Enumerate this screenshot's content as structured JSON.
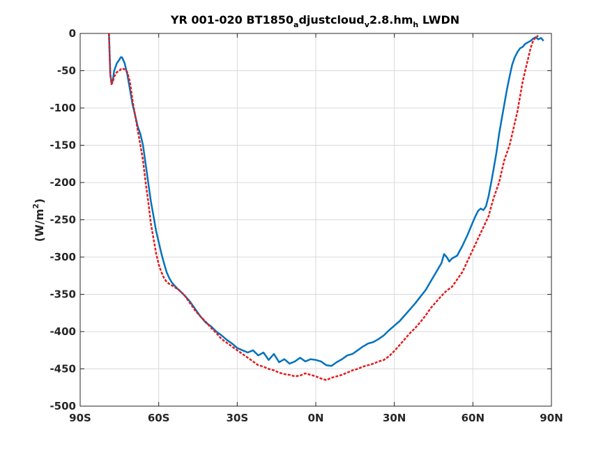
{
  "chart_data": {
    "type": "line",
    "title": {
      "p1": "YR 001-020 BT1850",
      "s1": "a",
      "p2": "djustcloud",
      "s2": "v",
      "p3": "2.8.hm",
      "s3": "h",
      "p4": " LWDN"
    },
    "ylabel": {
      "prefix": "(W/m",
      "sup": "2",
      "suffix": ")"
    },
    "xlabel": "",
    "xlim": [
      -90,
      90
    ],
    "ylim": [
      -500,
      0
    ],
    "x_ticks": [
      -90,
      -60,
      -30,
      0,
      30,
      60,
      90
    ],
    "x_tick_labels": [
      "90S",
      "60S",
      "30S",
      "0N",
      "30N",
      "60N",
      "90N"
    ],
    "y_ticks": [
      0,
      -50,
      -100,
      -150,
      -200,
      -250,
      -300,
      -350,
      -400,
      -450,
      -500
    ],
    "y_tick_labels": [
      "0",
      "-50",
      "-100",
      "-150",
      "-200",
      "-250",
      "-300",
      "-350",
      "-400",
      "-450",
      "-500"
    ],
    "grid": true,
    "series": [
      {
        "color": "#0072bd",
        "style": "solid",
        "x": [
          -79,
          -78.5,
          -78,
          -77.5,
          -77,
          -76,
          -75,
          -74.5,
          -74,
          -73,
          -72,
          -71,
          -70,
          -69,
          -68,
          -67,
          -66,
          -65,
          -64,
          -63,
          -62,
          -61,
          -60,
          -59,
          -58,
          -57,
          -56,
          -55,
          -54,
          -53,
          -52,
          -50,
          -48,
          -46,
          -44,
          -42,
          -40,
          -38,
          -36,
          -34,
          -32,
          -30,
          -28,
          -26,
          -24,
          -22,
          -20,
          -18,
          -16,
          -14,
          -12,
          -10,
          -8,
          -6,
          -4,
          -2,
          0,
          2,
          4,
          6,
          8,
          10,
          12,
          14,
          16,
          18,
          20,
          22,
          24,
          26,
          28,
          30,
          32,
          34,
          36,
          38,
          40,
          42,
          44,
          46,
          48,
          49,
          50,
          51,
          52,
          54,
          56,
          58,
          60,
          61,
          62,
          63,
          64,
          65,
          66,
          67,
          68,
          69,
          70,
          71,
          72,
          73,
          74,
          75,
          76,
          77,
          78,
          79,
          80,
          81,
          82,
          83,
          84,
          85,
          86,
          86.5,
          87
        ],
        "y": [
          0,
          -55,
          -68,
          -62,
          -50,
          -40,
          -35,
          -32,
          -32,
          -40,
          -55,
          -75,
          -95,
          -110,
          -125,
          -135,
          -150,
          -175,
          -200,
          -225,
          -245,
          -265,
          -280,
          -295,
          -308,
          -320,
          -328,
          -334,
          -338,
          -342,
          -345,
          -352,
          -360,
          -370,
          -380,
          -388,
          -393,
          -400,
          -405,
          -411,
          -416,
          -422,
          -425,
          -428,
          -425,
          -432,
          -428,
          -438,
          -430,
          -441,
          -437,
          -443,
          -440,
          -435,
          -440,
          -437,
          -438,
          -440,
          -445,
          -446,
          -441,
          -437,
          -432,
          -430,
          -425,
          -420,
          -416,
          -414,
          -410,
          -405,
          -398,
          -392,
          -386,
          -378,
          -370,
          -362,
          -353,
          -344,
          -332,
          -320,
          -308,
          -296,
          -300,
          -306,
          -302,
          -298,
          -285,
          -270,
          -253,
          -245,
          -238,
          -235,
          -237,
          -232,
          -218,
          -200,
          -180,
          -160,
          -135,
          -115,
          -95,
          -75,
          -58,
          -42,
          -32,
          -25,
          -20,
          -18,
          -14,
          -12,
          -10,
          -7,
          -5,
          -8,
          -6,
          -8,
          -10
        ]
      },
      {
        "color": "#e41a1c",
        "style": "dashed",
        "x": [
          -79,
          -78.5,
          -78,
          -77.5,
          -77,
          -76,
          -75,
          -74.5,
          -74,
          -73,
          -72,
          -71,
          -70,
          -69,
          -68,
          -67,
          -66,
          -65,
          -64,
          -63,
          -62,
          -61,
          -60,
          -59,
          -58,
          -57,
          -56,
          -55,
          -54,
          -52,
          -50,
          -48,
          -46,
          -44,
          -42,
          -40,
          -38,
          -36,
          -34,
          -32,
          -30,
          -28,
          -26,
          -24,
          -22,
          -20,
          -18,
          -16,
          -14,
          -12,
          -10,
          -8,
          -6,
          -4,
          -2,
          0,
          2,
          4,
          6,
          8,
          10,
          12,
          14,
          16,
          18,
          20,
          22,
          24,
          26,
          28,
          30,
          32,
          34,
          36,
          38,
          40,
          42,
          44,
          46,
          48,
          50,
          52,
          54,
          56,
          58,
          60,
          62,
          64,
          66,
          67,
          68,
          69,
          70,
          71,
          72,
          73,
          74,
          75,
          76,
          77,
          78,
          79,
          80,
          81,
          82,
          83,
          84,
          85
        ],
        "y": [
          0,
          -55,
          -68,
          -65,
          -58,
          -52,
          -50,
          -48,
          -47,
          -48,
          -52,
          -65,
          -90,
          -110,
          -130,
          -150,
          -170,
          -200,
          -225,
          -255,
          -275,
          -295,
          -310,
          -320,
          -328,
          -333,
          -336,
          -338,
          -340,
          -345,
          -352,
          -362,
          -372,
          -380,
          -387,
          -395,
          -402,
          -410,
          -415,
          -420,
          -425,
          -430,
          -435,
          -440,
          -445,
          -447,
          -450,
          -452,
          -455,
          -457,
          -458,
          -460,
          -459,
          -456,
          -458,
          -460,
          -463,
          -465,
          -462,
          -460,
          -458,
          -455,
          -452,
          -450,
          -447,
          -445,
          -443,
          -440,
          -438,
          -433,
          -426,
          -418,
          -410,
          -402,
          -395,
          -387,
          -378,
          -368,
          -360,
          -352,
          -345,
          -340,
          -330,
          -320,
          -305,
          -290,
          -275,
          -260,
          -245,
          -232,
          -220,
          -210,
          -200,
          -185,
          -170,
          -160,
          -150,
          -135,
          -120,
          -105,
          -85,
          -65,
          -50,
          -35,
          -20,
          -10,
          -5,
          -3
        ]
      }
    ]
  }
}
